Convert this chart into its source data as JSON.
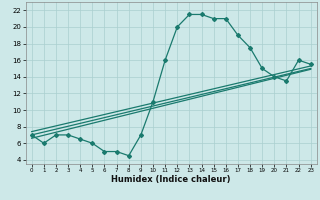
{
  "title": "",
  "xlabel": "Humidex (Indice chaleur)",
  "xlim": [
    -0.5,
    23.5
  ],
  "ylim": [
    3.5,
    23
  ],
  "xticks": [
    0,
    1,
    2,
    3,
    4,
    5,
    6,
    7,
    8,
    9,
    10,
    11,
    12,
    13,
    14,
    15,
    16,
    17,
    18,
    19,
    20,
    21,
    22,
    23
  ],
  "yticks": [
    4,
    6,
    8,
    10,
    12,
    14,
    16,
    18,
    20,
    22
  ],
  "main_color": "#1a7a6e",
  "bg_color": "#cde8e8",
  "grid_color": "#aacfcf",
  "hours": [
    0,
    1,
    2,
    3,
    4,
    5,
    6,
    7,
    8,
    9,
    10,
    11,
    12,
    13,
    14,
    15,
    16,
    17,
    18,
    19,
    20,
    21,
    22,
    23
  ],
  "humidex": [
    7.0,
    6.0,
    7.0,
    7.0,
    6.5,
    6.0,
    5.0,
    5.0,
    4.5,
    7.0,
    11.0,
    16.0,
    20.0,
    21.5,
    21.5,
    21.0,
    21.0,
    19.0,
    17.5,
    15.0,
    14.0,
    13.5,
    16.0,
    15.5
  ],
  "trend1_x": [
    0,
    23
  ],
  "trend1_y": [
    7.0,
    15.0
  ],
  "trend2_x": [
    0,
    23
  ],
  "trend2_y": [
    7.4,
    15.3
  ],
  "trend3_x": [
    0,
    23
  ],
  "trend3_y": [
    6.6,
    14.9
  ]
}
